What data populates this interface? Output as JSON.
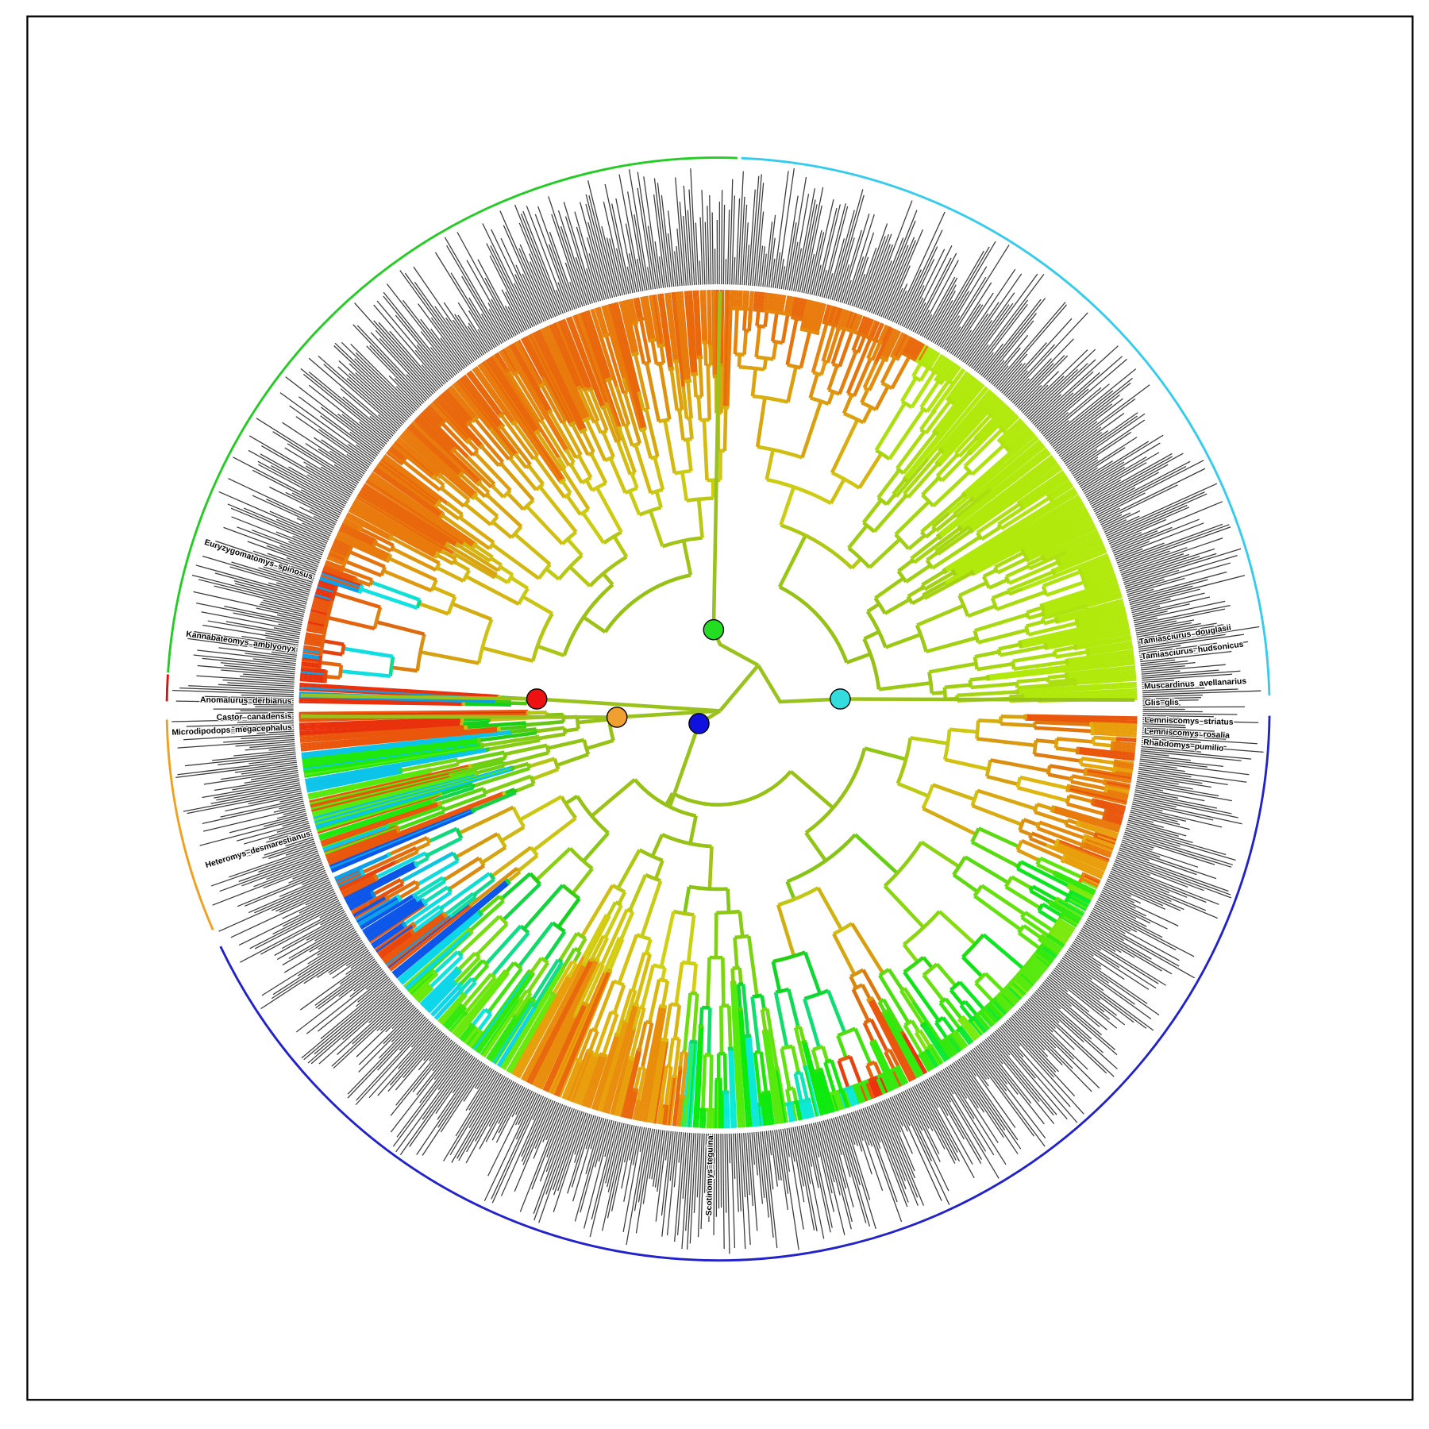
{
  "tips": [
    {
      "label": "Glis_glis"
    },
    {
      "label": "Muscardinus_avellanarius"
    },
    {
      "label": "Tamiasciurus_hudsonicus"
    },
    {
      "label": "Tamiasciurus_douglasii"
    },
    {
      "label": "Lemniscomys_striatus"
    },
    {
      "label": "Lemniscomys_rosalia"
    },
    {
      "label": "Rhabdomys_pumilio"
    },
    {
      "label": "Castor_canadensis"
    },
    {
      "label": "Microdipodops_megacephalus"
    },
    {
      "label": "Anomalurus_derbianus"
    },
    {
      "label": "Heteromys_desmarestianus"
    },
    {
      "label": "Kannabateomys_amblyonyx"
    },
    {
      "label": "Euryzygomatomys_spinosus"
    },
    {
      "label": "Scotinomys_teguina"
    }
  ]
}
